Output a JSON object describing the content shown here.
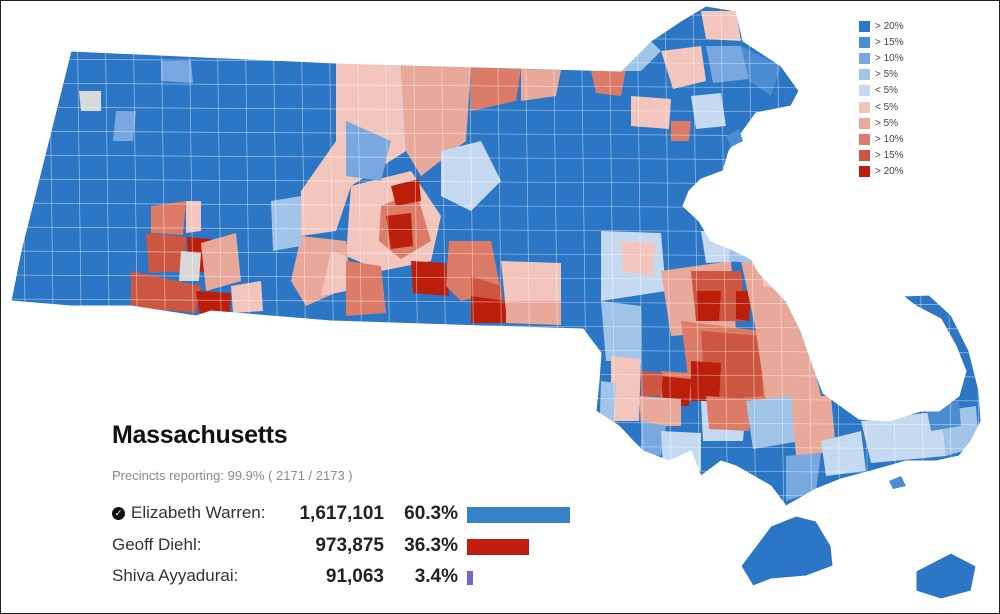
{
  "title": "Massachusetts",
  "precincts_label": "Precincts reporting: 99.9% ( 2171 / 2173 )",
  "colors": {
    "dem_20": "#2b76c5",
    "dem_15": "#4a8dd3",
    "dem_10": "#78a8df",
    "dem_5": "#a1c4e9",
    "dem_lt5": "#c5daf1",
    "rep_lt5": "#f2c6bd",
    "rep_5": "#e8a99b",
    "rep_10": "#dc7c68",
    "rep_15": "#cc5640",
    "rep_20": "#bb1e0b",
    "no_data": "#d8d8d8"
  },
  "legend": [
    {
      "label": "> 20%",
      "color": "#2b76c5"
    },
    {
      "label": "> 15%",
      "color": "#4a8dd3"
    },
    {
      "label": "> 10%",
      "color": "#78a8df"
    },
    {
      "label": "> 5%",
      "color": "#a1c4e9"
    },
    {
      "label": "< 5%",
      "color": "#c5daf1"
    },
    {
      "label": "< 5%",
      "color": "#f2c6bd"
    },
    {
      "label": "> 5%",
      "color": "#e8a99b"
    },
    {
      "label": "> 10%",
      "color": "#dc7c68"
    },
    {
      "label": "> 15%",
      "color": "#cc5640"
    },
    {
      "label": "> 20%",
      "color": "#bb1e0b"
    }
  ],
  "candidates": [
    {
      "name": "Elizabeth Warren:",
      "votes": "1,617,101",
      "pct": "60.3%",
      "share": 0.603,
      "winner": true,
      "color": "#3582c9"
    },
    {
      "name": "Geoff Diehl:",
      "votes": "973,875",
      "pct": "36.3%",
      "share": 0.363,
      "winner": false,
      "color": "#c21d0e"
    },
    {
      "name": "Shiva Ayyadurai:",
      "votes": "91,063",
      "pct": "3.4%",
      "share": 0.034,
      "winner": false,
      "color": "#7c63c9"
    }
  ]
}
